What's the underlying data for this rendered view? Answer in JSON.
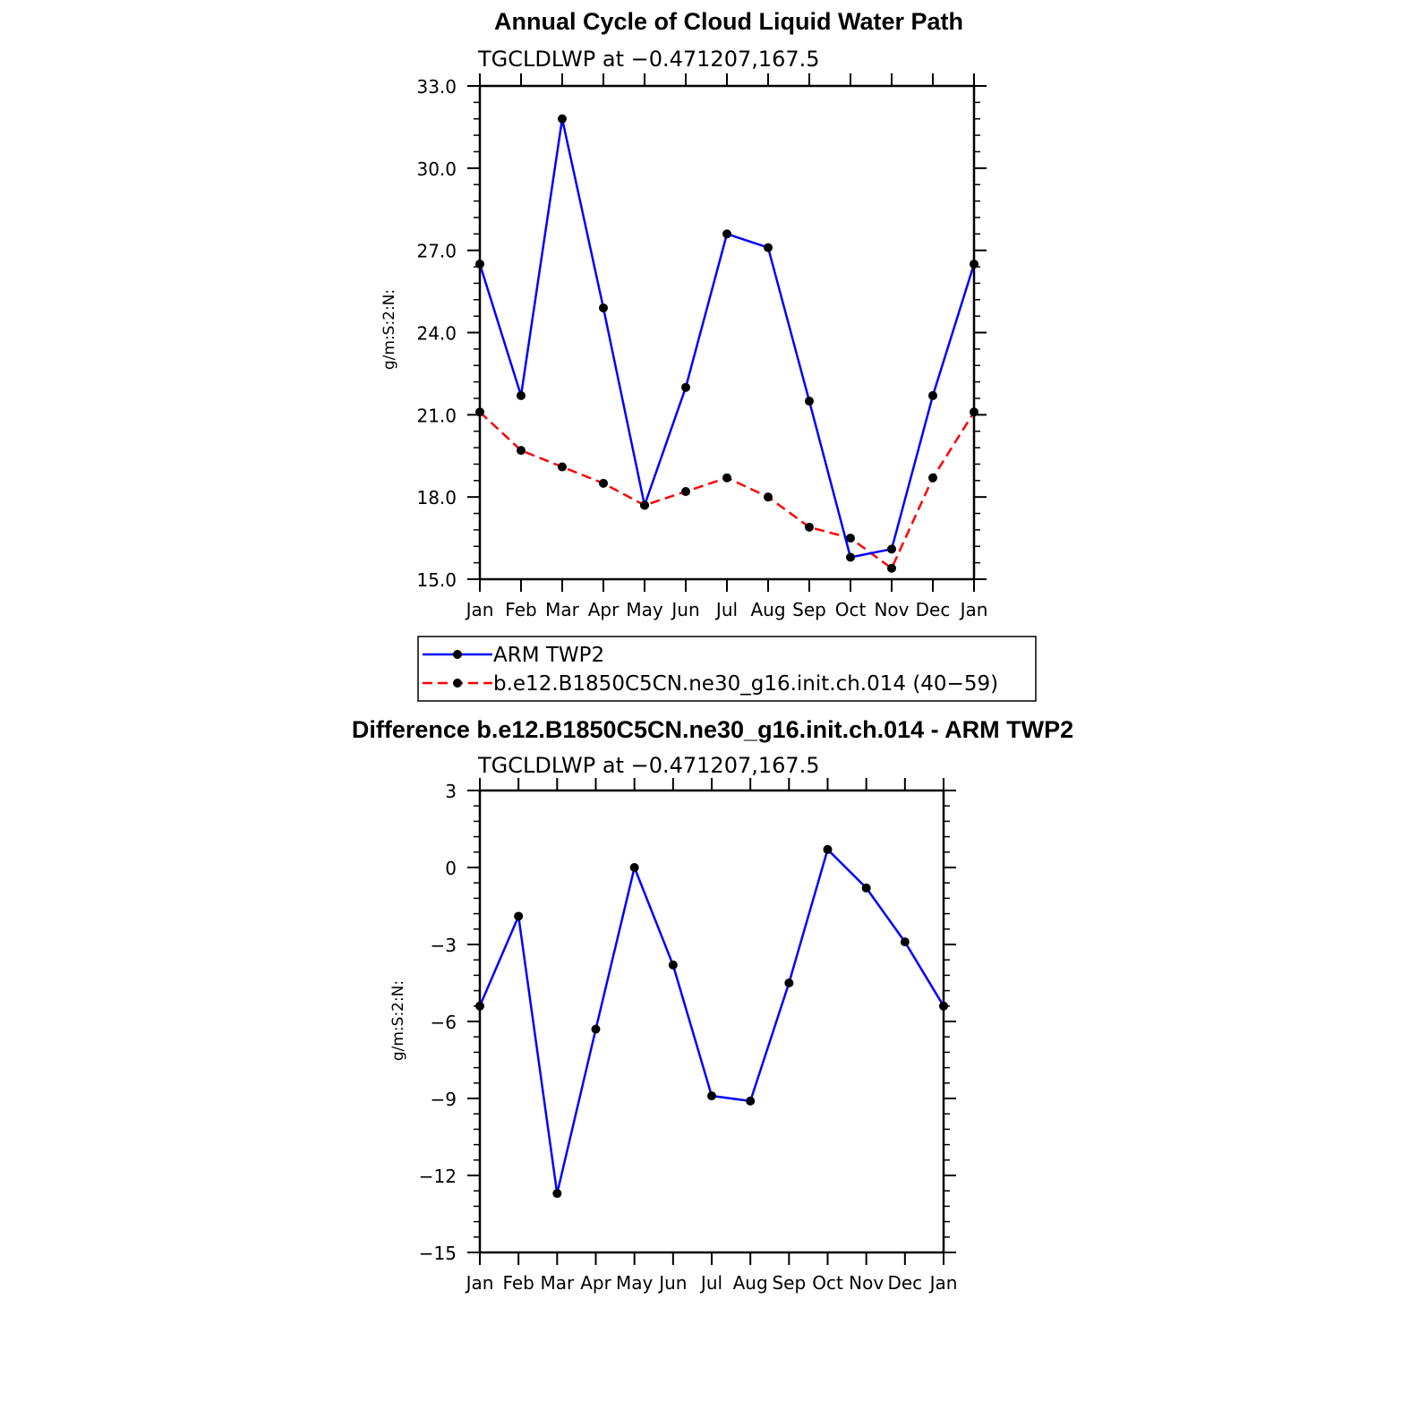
{
  "chart_data": [
    {
      "type": "line",
      "title": "Annual Cycle of Cloud Liquid Water Path",
      "subtitle": "TGCLDLWP at −0.471207,167.5",
      "xlabel": "",
      "ylabel": "g/m:S:2:N:",
      "categories": [
        "Jan",
        "Feb",
        "Mar",
        "Apr",
        "May",
        "Jun",
        "Jul",
        "Aug",
        "Sep",
        "Oct",
        "Nov",
        "Dec",
        "Jan"
      ],
      "ylim": [
        15.0,
        33.0
      ],
      "yticks": [
        15.0,
        18.0,
        21.0,
        24.0,
        27.0,
        30.0,
        33.0
      ],
      "ytick_labels": [
        "15.0",
        "18.0",
        "21.0",
        "24.0",
        "27.0",
        "30.0",
        "33.0"
      ],
      "legend_placement": "bottom",
      "series": [
        {
          "name": "ARM TWP2",
          "color": "#0000ff",
          "dash": "solid",
          "values": [
            26.5,
            21.7,
            31.8,
            24.9,
            17.7,
            22.0,
            27.6,
            27.1,
            21.5,
            15.8,
            16.1,
            21.7,
            26.5
          ]
        },
        {
          "name": "b.e12.B1850C5CN.ne30_g16.init.ch.014 (40−59)",
          "color": "#ff0000",
          "dash": "dashed",
          "values": [
            21.1,
            19.7,
            19.1,
            18.5,
            17.7,
            18.2,
            18.7,
            18.0,
            16.9,
            16.5,
            15.4,
            18.7,
            21.1
          ]
        }
      ]
    },
    {
      "type": "line",
      "title": "Difference b.e12.B1850C5CN.ne30_g16.init.ch.014 - ARM TWP2",
      "subtitle": "TGCLDLWP at −0.471207,167.5",
      "xlabel": "",
      "ylabel": "g/m:S:2:N:",
      "categories": [
        "Jan",
        "Feb",
        "Mar",
        "Apr",
        "May",
        "Jun",
        "Jul",
        "Aug",
        "Sep",
        "Oct",
        "Nov",
        "Dec",
        "Jan"
      ],
      "ylim": [
        -15,
        3
      ],
      "yticks": [
        -15,
        -12,
        -9,
        -6,
        -3,
        0,
        3
      ],
      "ytick_labels": [
        "−15",
        "−12",
        "−9",
        "−6",
        "−3",
        "0",
        "3"
      ],
      "series": [
        {
          "name": "difference",
          "color": "#0000ff",
          "dash": "solid",
          "values": [
            -5.4,
            -1.9,
            -12.7,
            -6.3,
            0.0,
            -3.8,
            -8.9,
            -9.1,
            -4.5,
            0.7,
            -0.8,
            -2.9,
            -5.4
          ]
        }
      ]
    }
  ]
}
